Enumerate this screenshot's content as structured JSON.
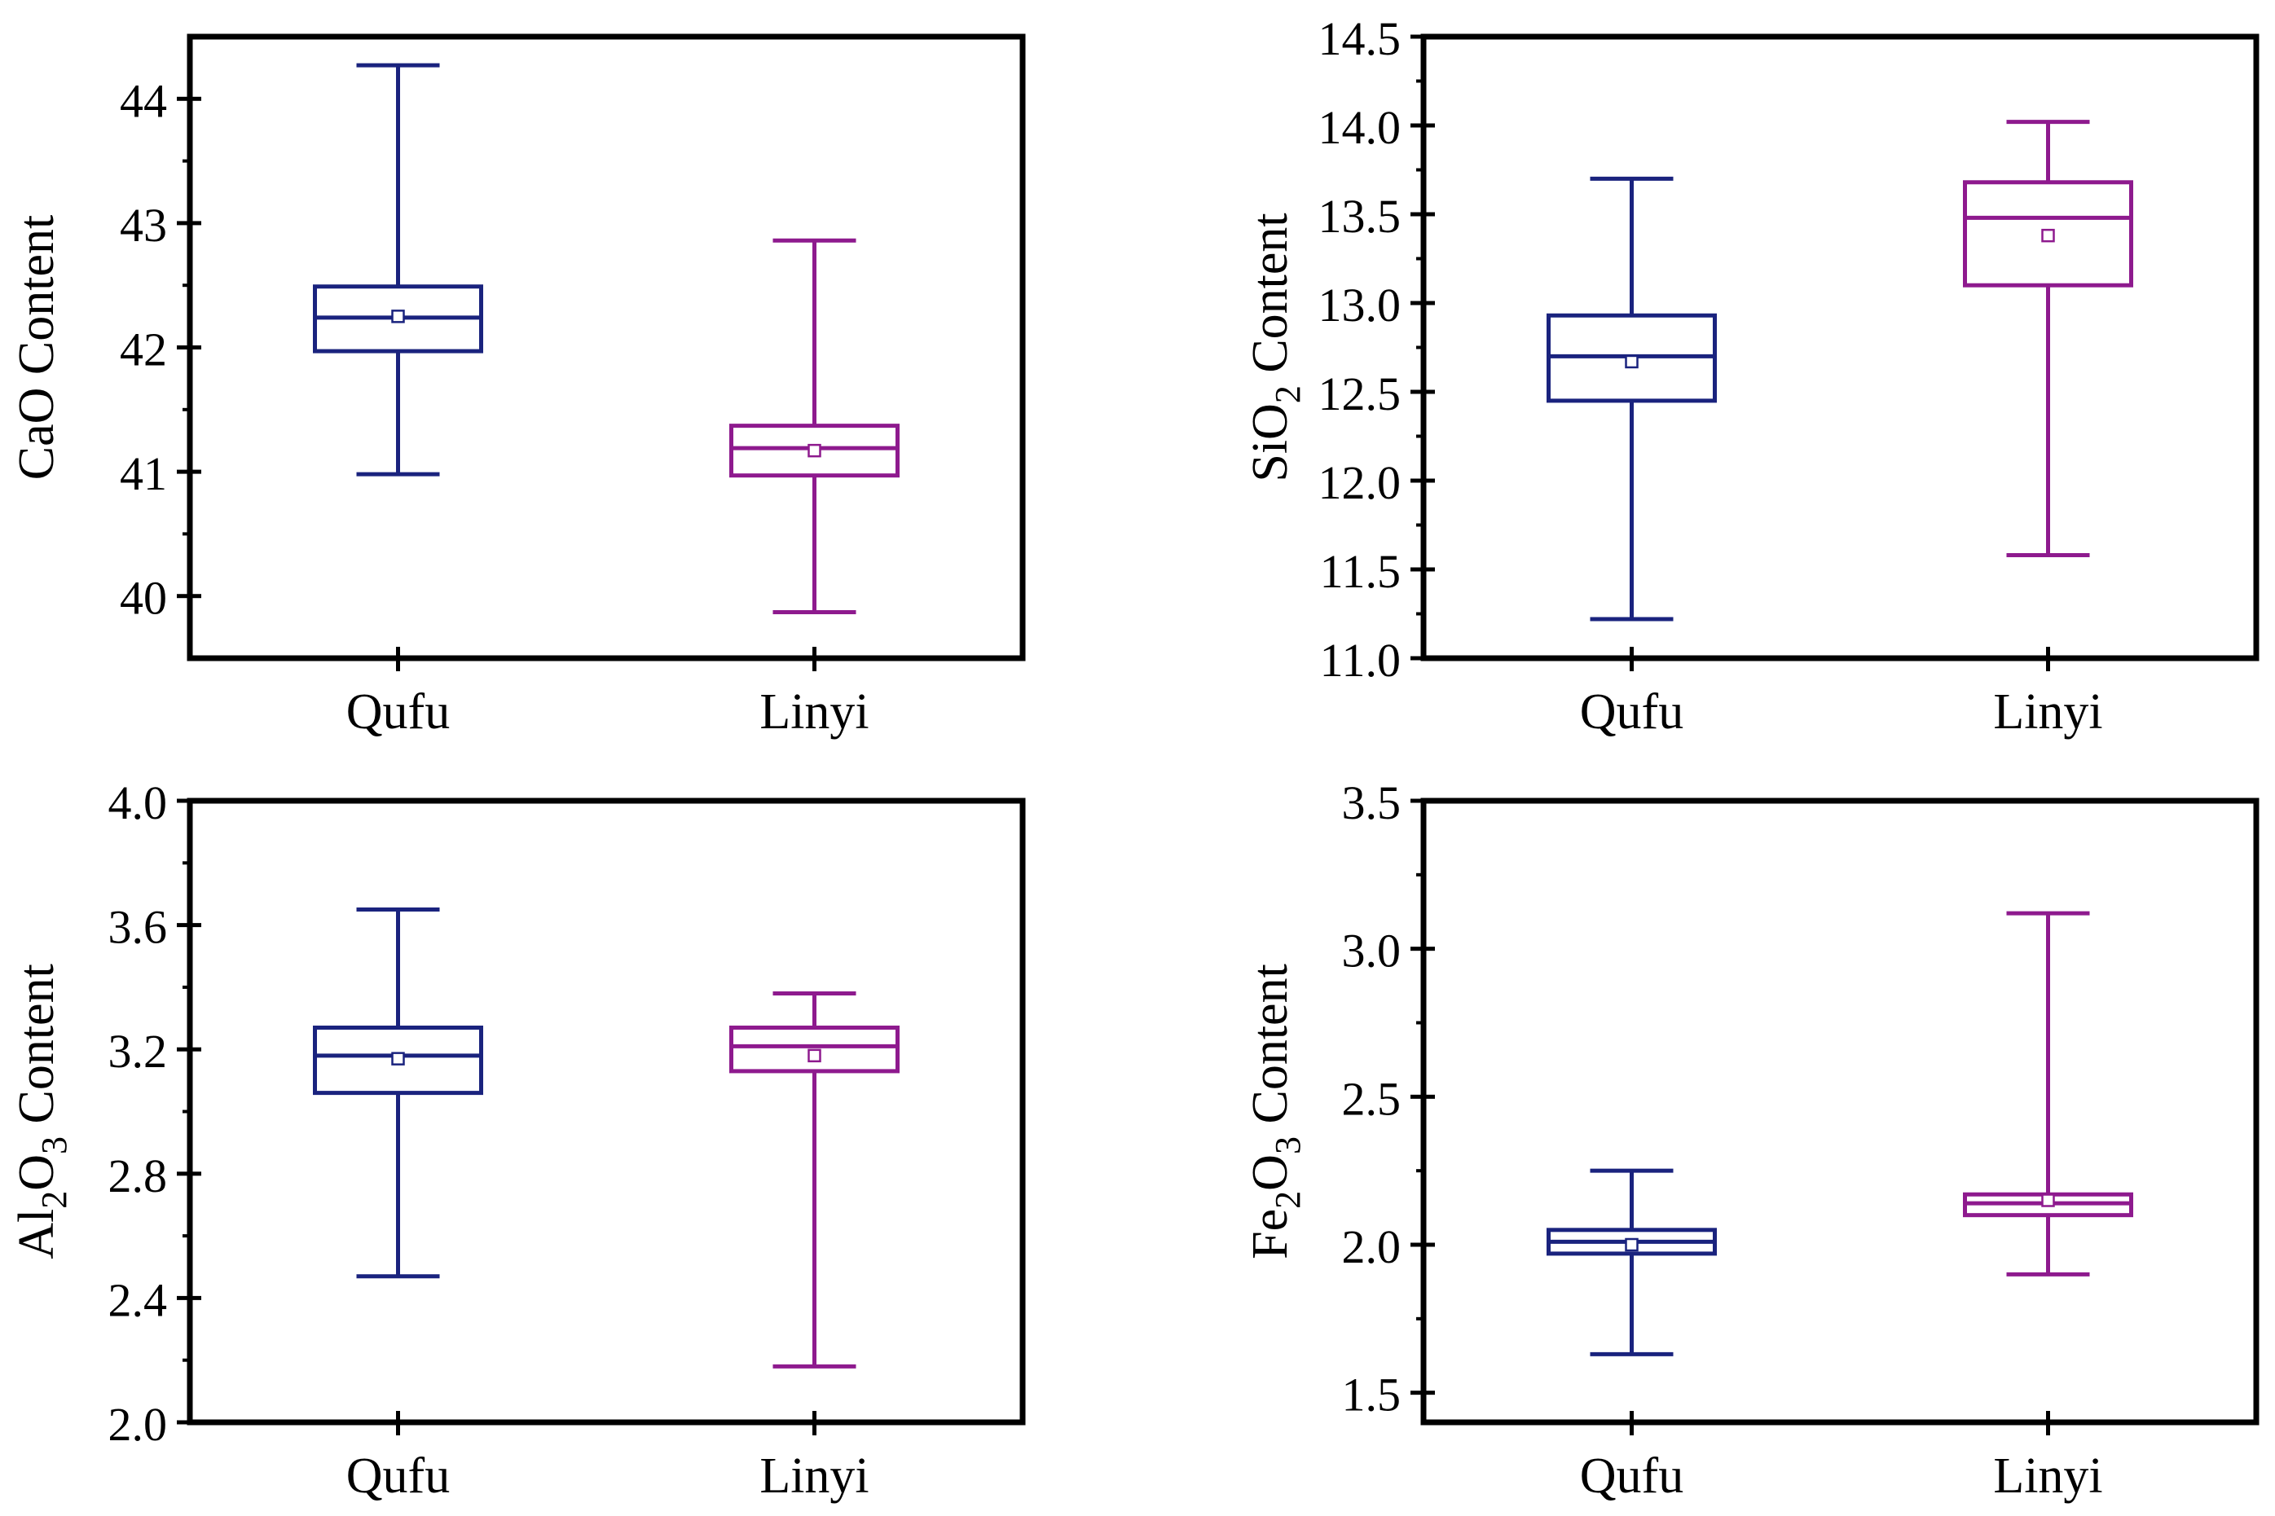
{
  "chart_data": [
    {
      "type": "box",
      "ylabel": {
        "main": "CaO",
        "sub": "",
        "tail": " Content"
      },
      "categories": [
        "Qufu",
        "Linyi"
      ],
      "ylim": [
        39.5,
        44.5
      ],
      "major_ticks": [
        40,
        41,
        42,
        43,
        44
      ],
      "minor_ticks": [
        40.5,
        41.5,
        42.5,
        43.5
      ],
      "tick_labels": [
        "40",
        "41",
        "42",
        "43",
        "44"
      ],
      "series": [
        {
          "name": "Qufu",
          "color": "#1a237e",
          "min": 40.98,
          "q1": 41.97,
          "median": 42.24,
          "q3": 42.49,
          "max": 44.27,
          "mean": 42.25
        },
        {
          "name": "Linyi",
          "color": "#8e1a8e",
          "min": 39.87,
          "q1": 40.97,
          "median": 41.19,
          "q3": 41.37,
          "max": 42.86,
          "mean": 41.17
        }
      ]
    },
    {
      "type": "box",
      "ylabel": {
        "main": "SiO",
        "sub": "2",
        "tail": " Content"
      },
      "categories": [
        "Qufu",
        "Linyi"
      ],
      "ylim": [
        11.0,
        14.5
      ],
      "major_ticks": [
        11.0,
        11.5,
        12.0,
        12.5,
        13.0,
        13.5,
        14.0,
        14.5
      ],
      "minor_ticks": [
        11.25,
        11.75,
        12.25,
        12.75,
        13.25,
        13.75,
        14.25
      ],
      "tick_labels": [
        "11.0",
        "11.5",
        "12.0",
        "12.5",
        "13.0",
        "13.5",
        "14.0",
        "14.5"
      ],
      "series": [
        {
          "name": "Qufu",
          "color": "#1a237e",
          "min": 11.22,
          "q1": 12.45,
          "median": 12.7,
          "q3": 12.93,
          "max": 13.7,
          "mean": 12.67
        },
        {
          "name": "Linyi",
          "color": "#8e1a8e",
          "min": 11.58,
          "q1": 13.1,
          "median": 13.48,
          "q3": 13.68,
          "max": 14.02,
          "mean": 13.38
        }
      ]
    },
    {
      "type": "box",
      "ylabel": {
        "main": "Al",
        "sub": "2",
        "mid": "O",
        "sub2": "3",
        "tail": " Content"
      },
      "categories": [
        "Qufu",
        "Linyi"
      ],
      "ylim": [
        2.0,
        4.0
      ],
      "major_ticks": [
        2.0,
        2.4,
        2.8,
        3.2,
        3.6,
        4.0
      ],
      "minor_ticks": [
        2.2,
        2.6,
        3.0,
        3.4,
        3.8
      ],
      "tick_labels": [
        "2.0",
        "2.4",
        "2.8",
        "3.2",
        "3.6",
        "4.0"
      ],
      "series": [
        {
          "name": "Qufu",
          "color": "#1a237e",
          "min": 2.47,
          "q1": 3.06,
          "median": 3.18,
          "q3": 3.27,
          "max": 3.65,
          "mean": 3.17
        },
        {
          "name": "Linyi",
          "color": "#8e1a8e",
          "min": 2.18,
          "q1": 3.13,
          "median": 3.21,
          "q3": 3.27,
          "max": 3.38,
          "mean": 3.18
        }
      ]
    },
    {
      "type": "box",
      "ylabel": {
        "main": "Fe",
        "sub": "2",
        "mid": "O",
        "sub2": "3",
        "tail": " Content"
      },
      "categories": [
        "Qufu",
        "Linyi"
      ],
      "ylim": [
        1.4,
        3.5
      ],
      "major_ticks": [
        1.5,
        2.0,
        2.5,
        3.0,
        3.5
      ],
      "minor_ticks": [
        1.75,
        2.25,
        2.75,
        3.25
      ],
      "tick_labels": [
        "1.5",
        "2.0",
        "2.5",
        "3.0",
        "3.5"
      ],
      "series": [
        {
          "name": "Qufu",
          "color": "#1a237e",
          "min": 1.63,
          "q1": 1.97,
          "median": 2.01,
          "q3": 2.05,
          "max": 2.25,
          "mean": 2.0
        },
        {
          "name": "Linyi",
          "color": "#8e1a8e",
          "min": 1.9,
          "q1": 2.1,
          "median": 2.14,
          "q3": 2.17,
          "max": 3.12,
          "mean": 2.15
        }
      ]
    }
  ]
}
